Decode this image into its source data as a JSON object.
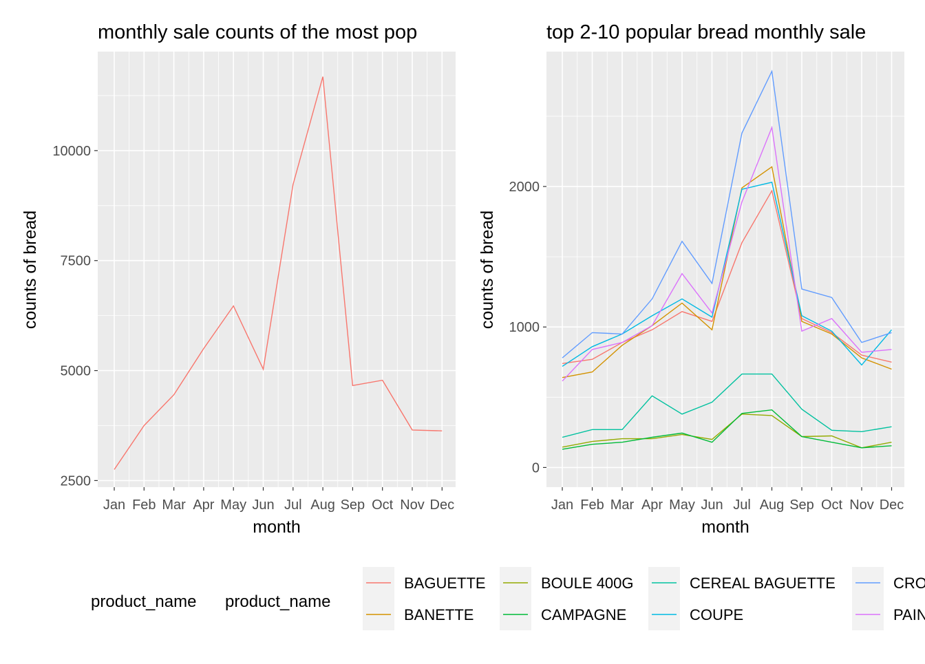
{
  "legend": {
    "title_1": "product_name",
    "title_2": "product_name",
    "entries": [
      {
        "label": "BAGUETTE",
        "color": "#F8766D"
      },
      {
        "label": "BANETTE",
        "color": "#D39200"
      },
      {
        "label": "BOULE 400G",
        "color": "#93AA00"
      },
      {
        "label": "CAMPAGNE",
        "color": "#00BA38"
      },
      {
        "label": "CEREAL BAGUETTE",
        "color": "#00C19F"
      },
      {
        "label": "COUPE",
        "color": "#00B9E3"
      },
      {
        "label": "CRO",
        "color": "#619CFF"
      },
      {
        "label": "PAIN",
        "color": "#DB72FB"
      }
    ]
  },
  "chart_data": [
    {
      "type": "line",
      "title": "monthly sale counts of the most pop",
      "xlabel": "month",
      "ylabel": "counts of bread",
      "categories": [
        "Jan",
        "Feb",
        "Mar",
        "Apr",
        "May",
        "Jun",
        "Jul",
        "Aug",
        "Sep",
        "Oct",
        "Nov",
        "Dec"
      ],
      "ylim": [
        2350,
        12250
      ],
      "yticks": [
        2500,
        5000,
        7500,
        10000
      ],
      "grid": true,
      "series": [
        {
          "color": "#F8766D",
          "values": [
            2750,
            3750,
            4450,
            5500,
            6470,
            5030,
            9230,
            11680,
            4660,
            4780,
            3650,
            3630
          ]
        }
      ]
    },
    {
      "type": "line",
      "title": "top 2-10 popular bread monthly sale",
      "xlabel": "month",
      "ylabel": "counts of bread",
      "categories": [
        "Jan",
        "Feb",
        "Mar",
        "Apr",
        "May",
        "Jun",
        "Jul",
        "Aug",
        "Sep",
        "Oct",
        "Nov",
        "Dec"
      ],
      "ylim": [
        -140,
        2960
      ],
      "yticks": [
        0,
        1000,
        2000
      ],
      "grid": true,
      "legend_position": "bottom",
      "series": [
        {
          "name": "BAGUETTE",
          "color": "#F8766D",
          "values": [
            740,
            770,
            890,
            980,
            1110,
            1040,
            1600,
            1970,
            1060,
            960,
            800,
            750
          ]
        },
        {
          "name": "BANETTE",
          "color": "#D39200",
          "values": [
            640,
            680,
            870,
            1010,
            1170,
            980,
            1990,
            2140,
            1040,
            950,
            780,
            700
          ]
        },
        {
          "name": "BOULE 400G",
          "color": "#93AA00",
          "values": [
            145,
            185,
            205,
            205,
            235,
            200,
            380,
            370,
            220,
            225,
            140,
            180
          ]
        },
        {
          "name": "CAMPAGNE",
          "color": "#00BA38",
          "values": [
            130,
            165,
            180,
            215,
            245,
            180,
            385,
            410,
            220,
            180,
            140,
            155
          ]
        },
        {
          "name": "CEREAL BAGUETTE",
          "color": "#00C19F",
          "values": [
            215,
            270,
            270,
            510,
            380,
            465,
            665,
            665,
            415,
            265,
            255,
            290
          ]
        },
        {
          "name": "COUPE",
          "color": "#00B9E3",
          "values": [
            720,
            860,
            950,
            1080,
            1200,
            1070,
            1980,
            2030,
            1080,
            970,
            730,
            980
          ]
        },
        {
          "name": "CRO",
          "color": "#619CFF",
          "values": [
            780,
            960,
            950,
            1200,
            1610,
            1310,
            2380,
            2820,
            1270,
            1210,
            890,
            960
          ]
        },
        {
          "name": "PAIN",
          "color": "#DB72FB",
          "values": [
            615,
            840,
            890,
            1010,
            1380,
            1100,
            1890,
            2420,
            970,
            1060,
            820,
            840
          ]
        }
      ]
    }
  ]
}
